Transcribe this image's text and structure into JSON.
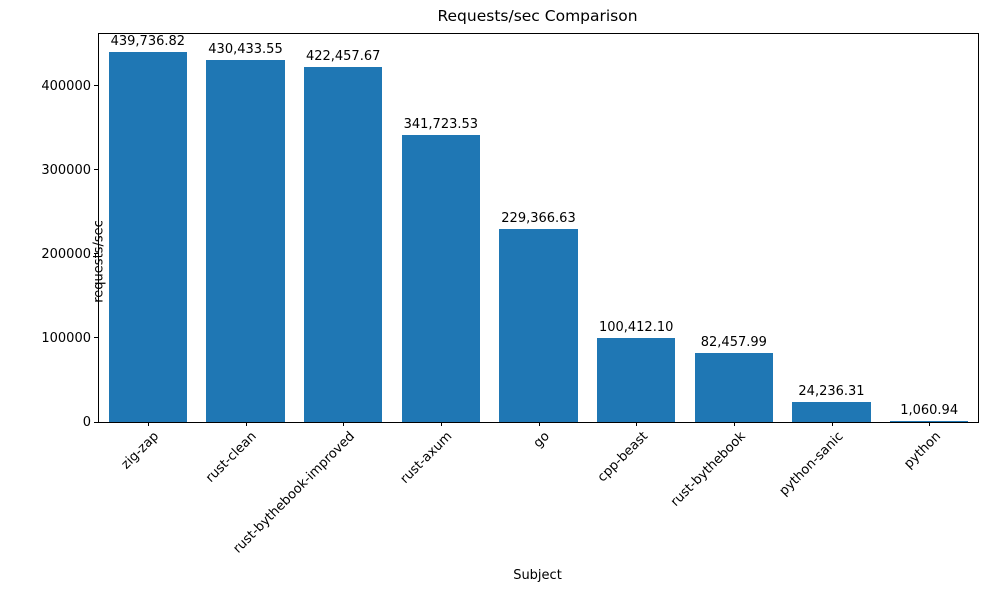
{
  "chart_data": {
    "type": "bar",
    "title": "Requests/sec Comparison",
    "xlabel": "Subject",
    "ylabel": "requests/sec",
    "categories": [
      "zig-zap",
      "rust-clean",
      "rust-bythebook-improved",
      "rust-axum",
      "go",
      "cpp-beast",
      "rust-bythebook",
      "python-sanic",
      "python"
    ],
    "values": [
      439736.82,
      430433.55,
      422457.67,
      341723.53,
      229366.63,
      100412.1,
      82457.99,
      24236.31,
      1060.94
    ],
    "value_labels": [
      "439,736.82",
      "430,433.55",
      "422,457.67",
      "341,723.53",
      "229,366.63",
      "100,412.10",
      "82,457.99",
      "24,236.31",
      "1,060.94"
    ],
    "yticks": [
      0,
      100000,
      200000,
      300000,
      400000
    ],
    "ylim": [
      0,
      461724
    ],
    "bar_color": "#1f77b4",
    "bar_width_fraction": 0.8,
    "grid": false,
    "legend_position": "none"
  }
}
